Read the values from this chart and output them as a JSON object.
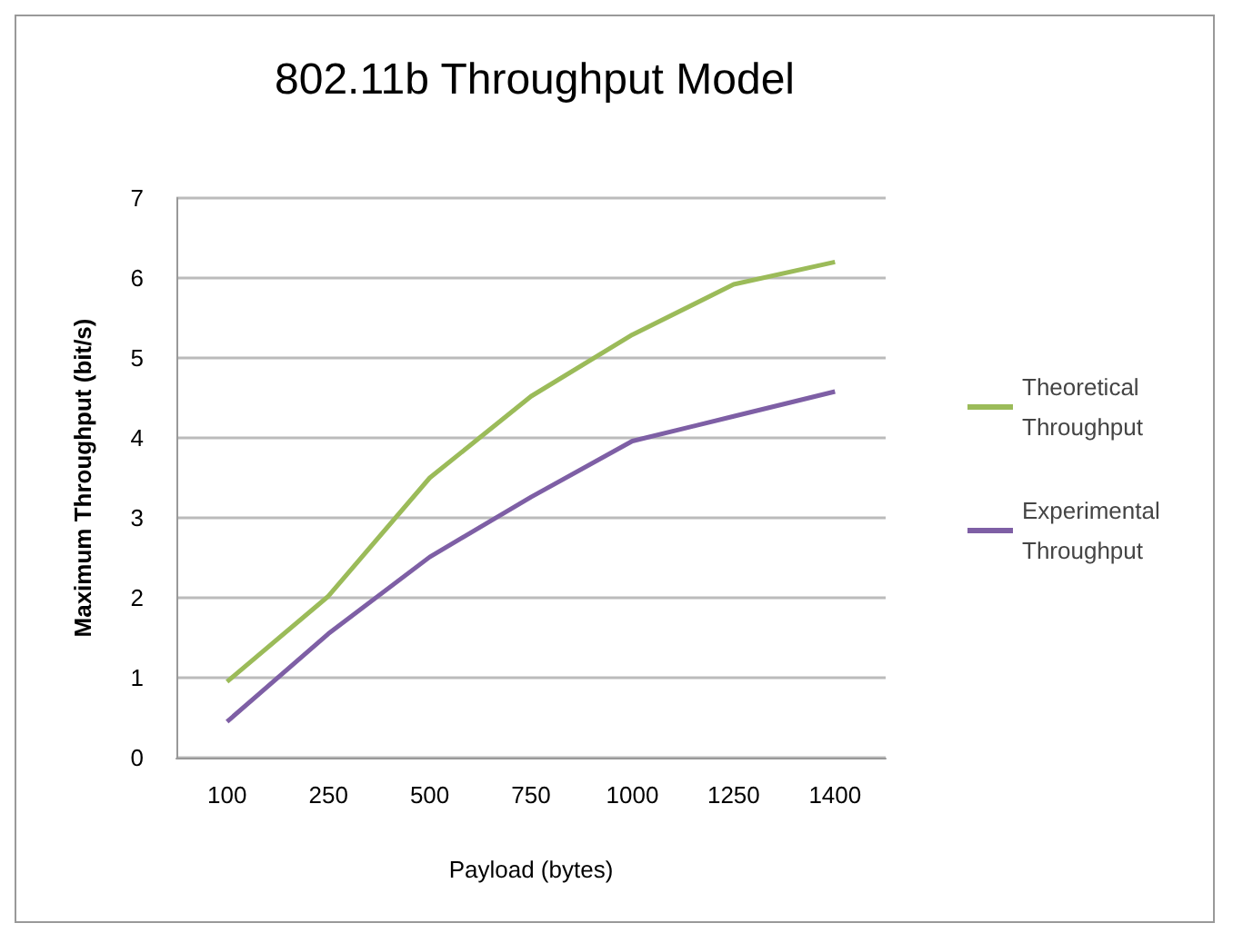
{
  "chart_data": {
    "type": "line",
    "title": "802.11b Throughput Model",
    "xlabel": "Payload (bytes)",
    "ylabel": "Maximum Throughput (bit/s)",
    "categories": [
      "100",
      "250",
      "500",
      "750",
      "1000",
      "1250",
      "1400"
    ],
    "series": [
      {
        "name": "Theoretical Throughput",
        "color": "#9bbb59",
        "values": [
          0.95,
          2.02,
          3.5,
          4.52,
          5.29,
          5.92,
          6.2
        ]
      },
      {
        "name": "Experimental Throughput",
        "color": "#7e5fa5",
        "values": [
          0.45,
          1.55,
          2.51,
          3.26,
          3.96,
          4.27,
          4.58
        ]
      }
    ],
    "ylim": [
      0,
      7
    ],
    "yticks": [
      0,
      1,
      2,
      3,
      4,
      5,
      6,
      7
    ],
    "grid": "y",
    "legend": "right",
    "marker": "none"
  }
}
